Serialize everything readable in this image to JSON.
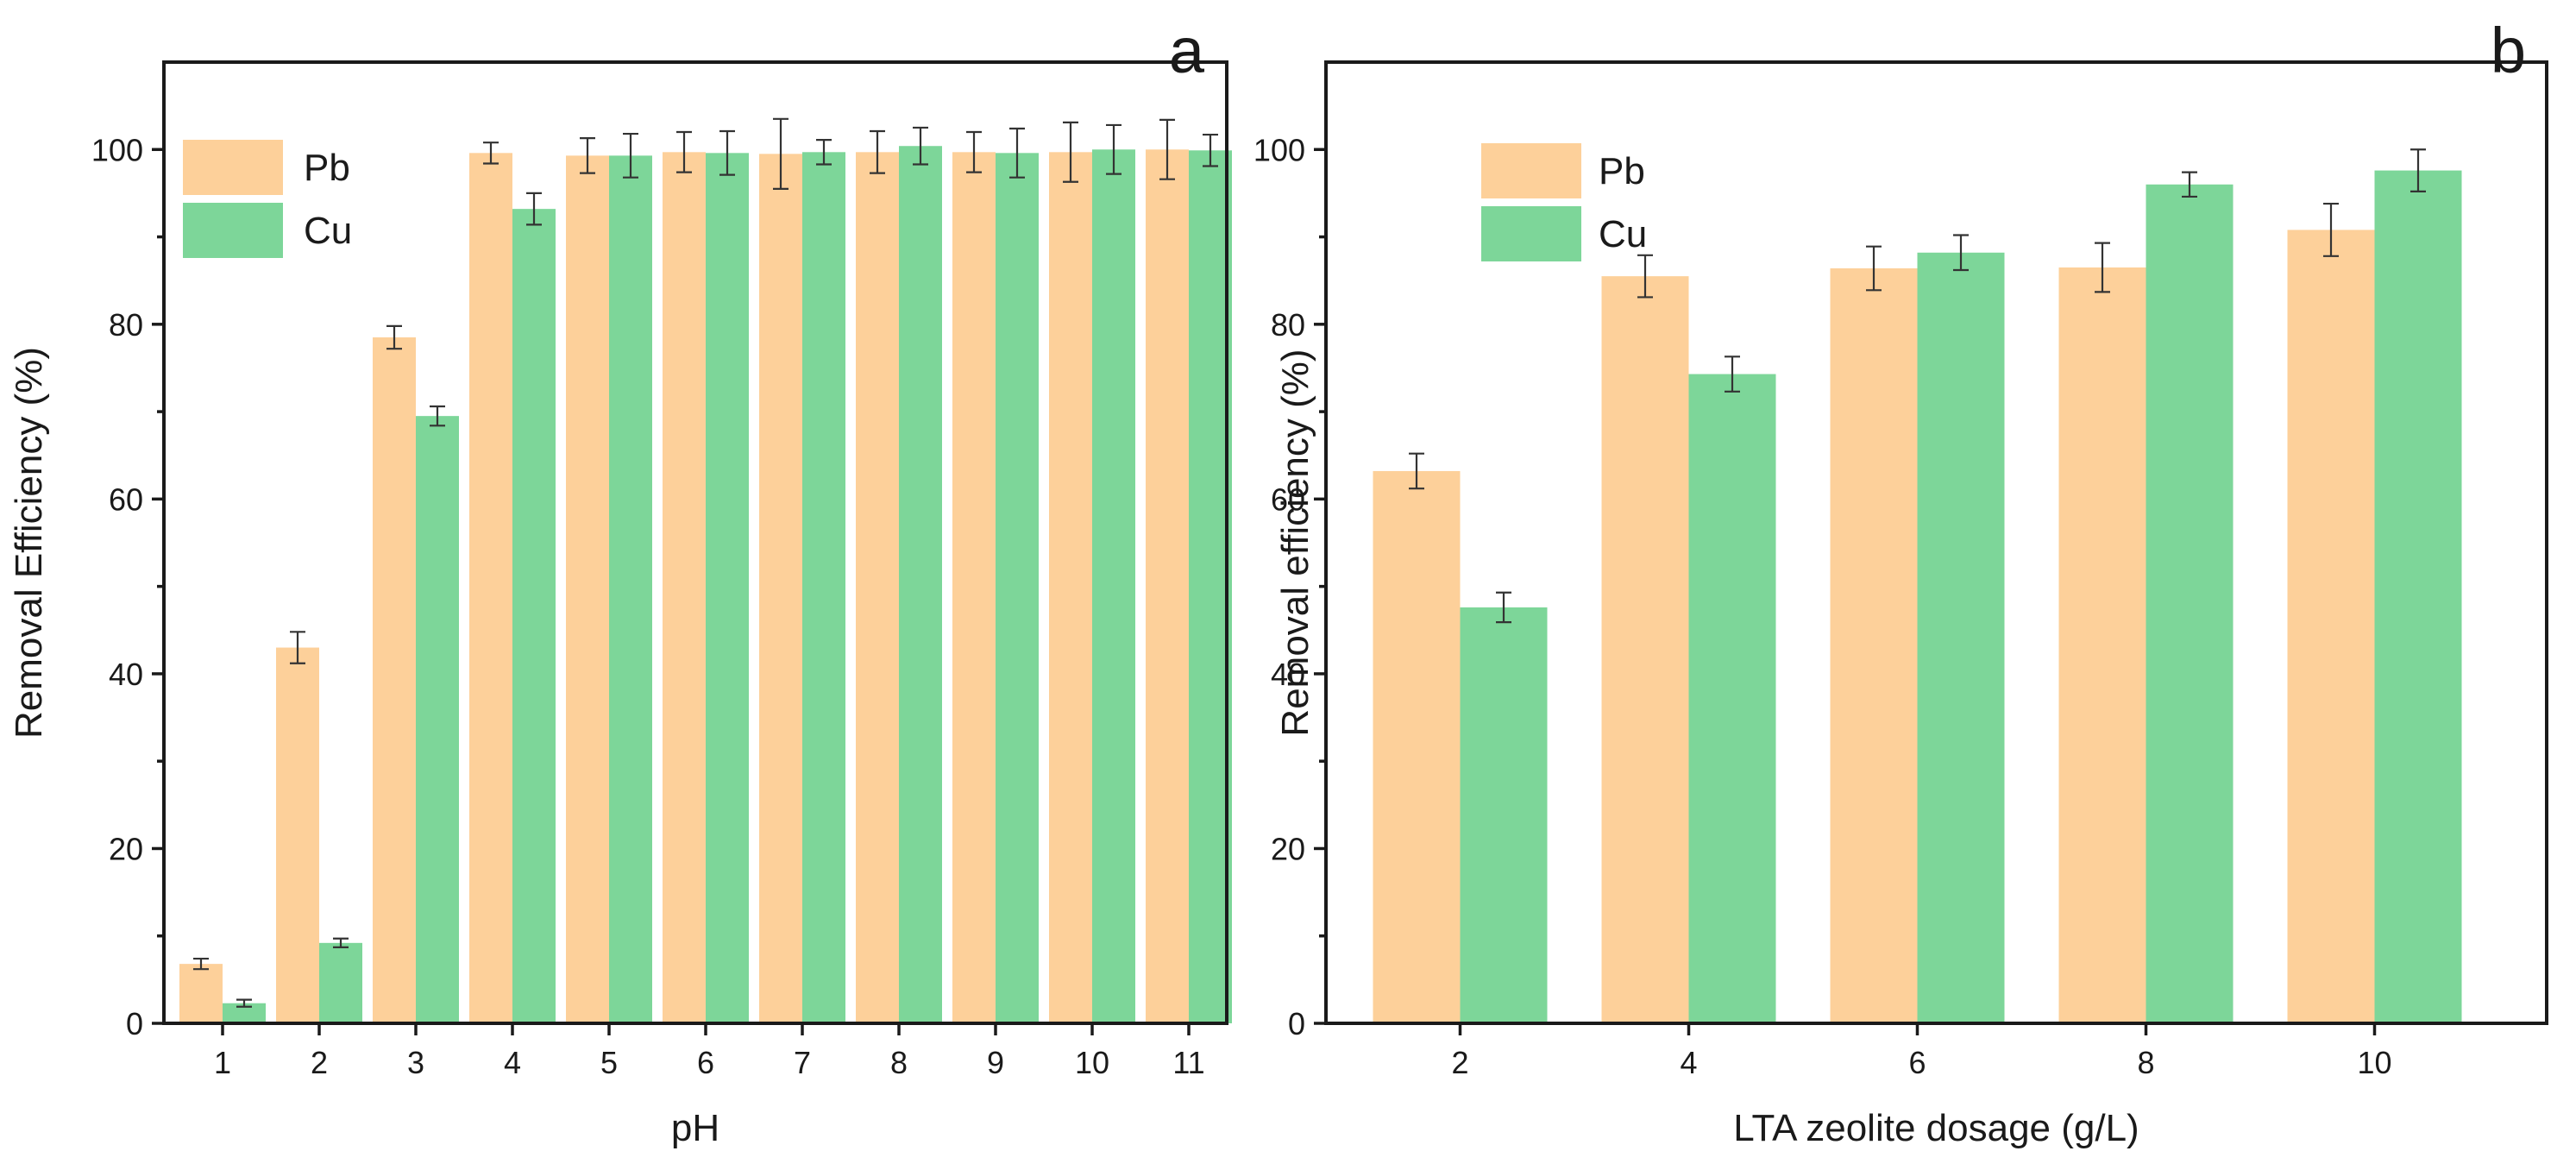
{
  "chart_data": [
    {
      "type": "bar",
      "panel_label": "a",
      "xlabel": "pH",
      "ylabel": "Removal Efficiency (%)",
      "ylim": [
        0,
        110
      ],
      "yticks": [
        0,
        20,
        40,
        60,
        80,
        100
      ],
      "categories": [
        "1",
        "2",
        "3",
        "4",
        "5",
        "6",
        "7",
        "8",
        "9",
        "10",
        "11"
      ],
      "legend_position": "top-left",
      "series": [
        {
          "name": "Pb",
          "color": "#FDD09A",
          "values": [
            6.8,
            43.0,
            78.5,
            99.6,
            99.3,
            99.7,
            99.5,
            99.7,
            99.7,
            99.7,
            100.0
          ],
          "errors": [
            0.6,
            1.8,
            1.3,
            1.2,
            2.0,
            2.3,
            4.0,
            2.4,
            2.3,
            3.4,
            3.4
          ]
        },
        {
          "name": "Cu",
          "color": "#7DD699",
          "values": [
            2.3,
            9.2,
            69.5,
            93.2,
            99.3,
            99.6,
            99.7,
            100.4,
            99.6,
            100.0,
            99.9
          ],
          "errors": [
            0.4,
            0.5,
            1.1,
            1.8,
            2.5,
            2.5,
            1.4,
            2.1,
            2.8,
            2.8,
            1.8
          ]
        }
      ]
    },
    {
      "type": "bar",
      "panel_label": "b",
      "xlabel": "LTA zeolite dosage (g/L)",
      "ylabel": "Removal efficiency (%)",
      "ylim": [
        0,
        110
      ],
      "yticks": [
        0,
        20,
        40,
        60,
        80,
        100
      ],
      "categories": [
        "2",
        "4",
        "6",
        "8",
        "10"
      ],
      "legend_position": "top-left",
      "series": [
        {
          "name": "Pb",
          "color": "#FDD09A",
          "values": [
            63.2,
            85.5,
            86.4,
            86.5,
            90.8
          ],
          "errors": [
            2.0,
            2.4,
            2.5,
            2.8,
            3.0
          ]
        },
        {
          "name": "Cu",
          "color": "#7DD699",
          "values": [
            47.6,
            74.3,
            88.2,
            96.0,
            97.6
          ],
          "errors": [
            1.7,
            2.0,
            2.0,
            1.4,
            2.4
          ]
        }
      ]
    }
  ]
}
